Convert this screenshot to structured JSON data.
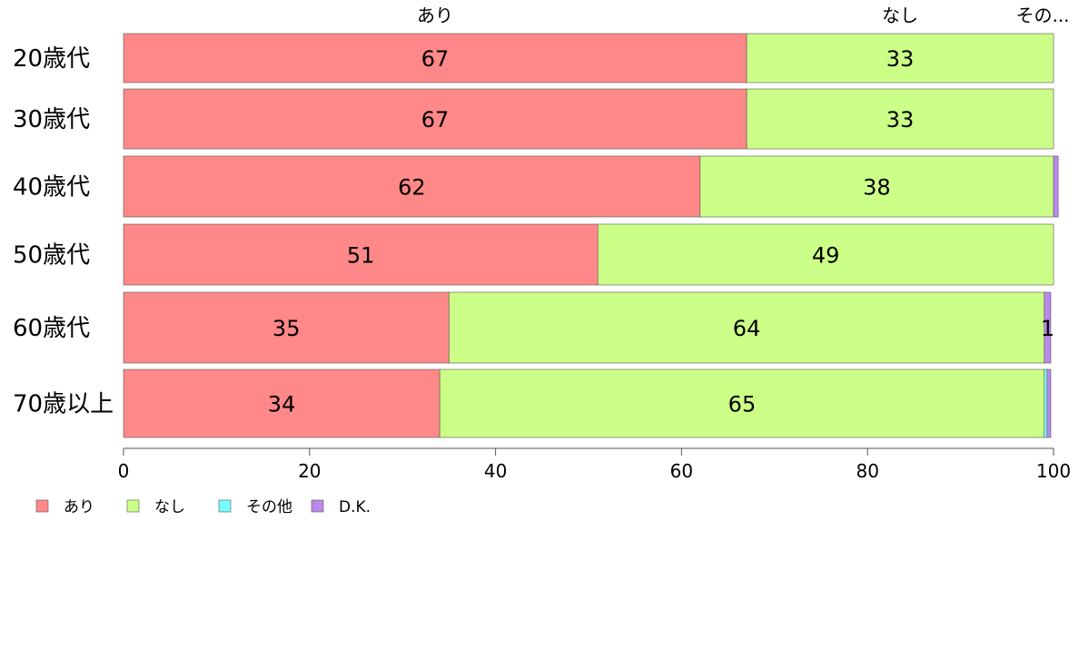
{
  "chart_data": {
    "type": "bar",
    "orientation": "horizontal",
    "stacked": true,
    "categories": [
      "20歳代",
      "30歳代",
      "40歳代",
      "50歳代",
      "60歳代",
      "70歳以上"
    ],
    "series": [
      {
        "name": "あり",
        "color": "#FF8888",
        "values": [
          67,
          67,
          62,
          51,
          35,
          34
        ]
      },
      {
        "name": "なし",
        "color": "#CCFF88",
        "values": [
          33,
          33,
          38,
          49,
          64,
          65
        ]
      },
      {
        "name": "その他",
        "color": "#77FFFF",
        "values": [
          0,
          0,
          0,
          0,
          0,
          0.3
        ]
      },
      {
        "name": "D.K.",
        "color": "#BB88EE",
        "values": [
          0,
          0,
          0.5,
          0,
          0.7,
          0.4
        ]
      }
    ],
    "segment_labels": [
      [
        "67",
        "33",
        "",
        ""
      ],
      [
        "67",
        "33",
        "",
        ""
      ],
      [
        "62",
        "38",
        "",
        ""
      ],
      [
        "51",
        "49",
        "",
        ""
      ],
      [
        "35",
        "64",
        "",
        "1"
      ],
      [
        "34",
        "65",
        "",
        ""
      ]
    ],
    "top_labels": [
      "あり",
      "なし",
      "その..."
    ],
    "x_ticks": [
      "0",
      "20",
      "40",
      "60",
      "80",
      "100"
    ],
    "xlim": [
      0,
      100
    ],
    "legend_position": "bottom-left"
  }
}
